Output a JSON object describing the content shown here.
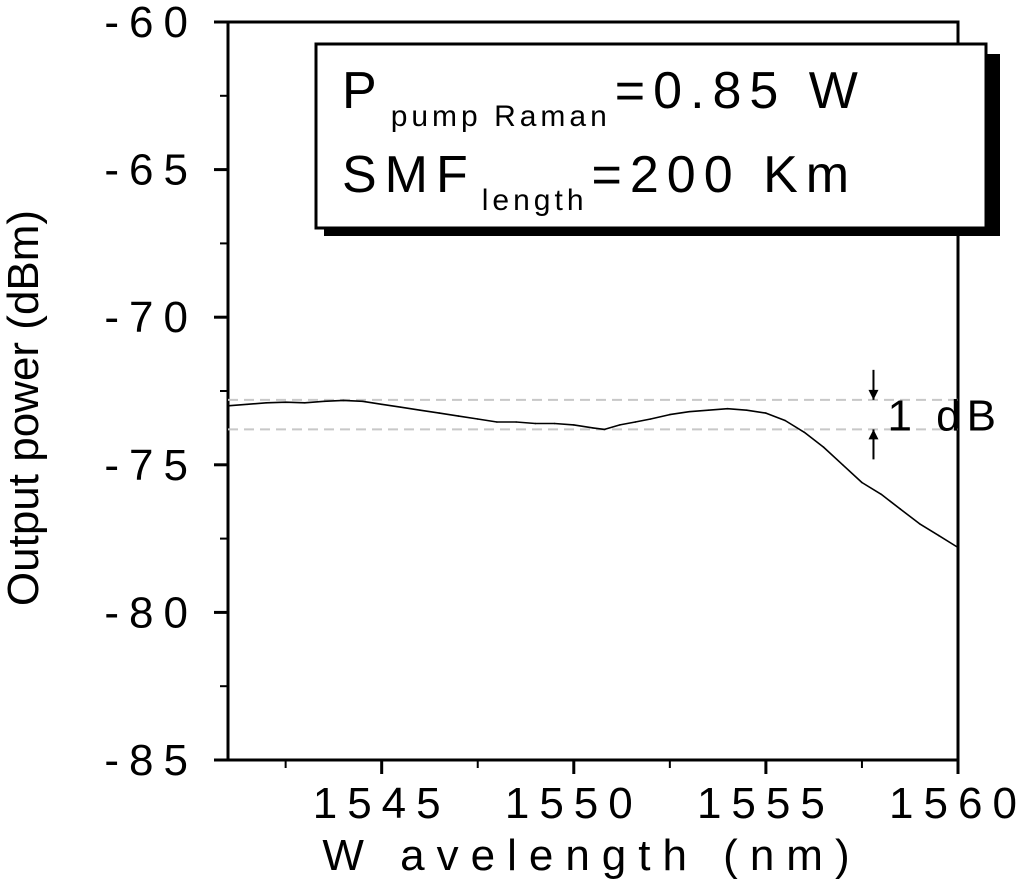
{
  "chart_data": {
    "type": "line",
    "xlabel": "W avelength (nm)",
    "ylabel": "Output power (dBm)",
    "xlim": [
      1541,
      1560
    ],
    "ylim": [
      -85,
      -60
    ],
    "x_ticks": [
      1545,
      1550,
      1555,
      1560
    ],
    "x_tick_labels": [
      "1545",
      "1550",
      "1555",
      "1560"
    ],
    "x_minor_ticks": [
      1542.5,
      1547.5,
      1552.5,
      1557.5
    ],
    "y_ticks": [
      -60,
      -65,
      -70,
      -75,
      -80,
      -85
    ],
    "y_tick_labels": [
      "-60",
      "-65",
      "-70",
      "-75",
      "-80",
      "-85"
    ],
    "y_minor_ticks": [
      -62.5,
      -67.5,
      -72.5,
      -77.5,
      -82.5
    ],
    "grid": false,
    "series": [
      {
        "x": [
          1541.0,
          1541.5,
          1542.0,
          1542.5,
          1543.0,
          1543.5,
          1544.0,
          1544.5,
          1545.0,
          1545.5,
          1546.0,
          1546.5,
          1547.0,
          1547.5,
          1548.0,
          1548.5,
          1549.0,
          1549.5,
          1550.0,
          1550.5,
          1550.8,
          1551.2,
          1551.6,
          1552.0,
          1552.5,
          1553.0,
          1553.5,
          1554.0,
          1554.5,
          1555.0,
          1555.5,
          1556.0,
          1556.5,
          1557.0,
          1557.5,
          1558.0,
          1558.5,
          1559.0,
          1559.5,
          1560.0
        ],
        "y": [
          -73.0,
          -72.95,
          -72.9,
          -72.88,
          -72.9,
          -72.85,
          -72.82,
          -72.85,
          -72.95,
          -73.05,
          -73.15,
          -73.25,
          -73.35,
          -73.45,
          -73.55,
          -73.55,
          -73.6,
          -73.6,
          -73.65,
          -73.75,
          -73.8,
          -73.65,
          -73.55,
          -73.45,
          -73.3,
          -73.2,
          -73.15,
          -73.1,
          -73.15,
          -73.25,
          -73.5,
          -73.9,
          -74.4,
          -75.0,
          -75.6,
          -76.0,
          -76.5,
          -77.0,
          -77.4,
          -77.8
        ]
      }
    ],
    "reference_lines": [
      -72.8,
      -73.8
    ],
    "annotations": {
      "range_marker": {
        "x": 1557.8,
        "label": "1 dB"
      },
      "legend_box": {
        "line1_main": "P",
        "line1_sub": "pump Raman",
        "line1_value": "=0.85 W",
        "line2_main": "SMF",
        "line2_sub": "length",
        "line2_value": "=200 Km"
      }
    }
  }
}
